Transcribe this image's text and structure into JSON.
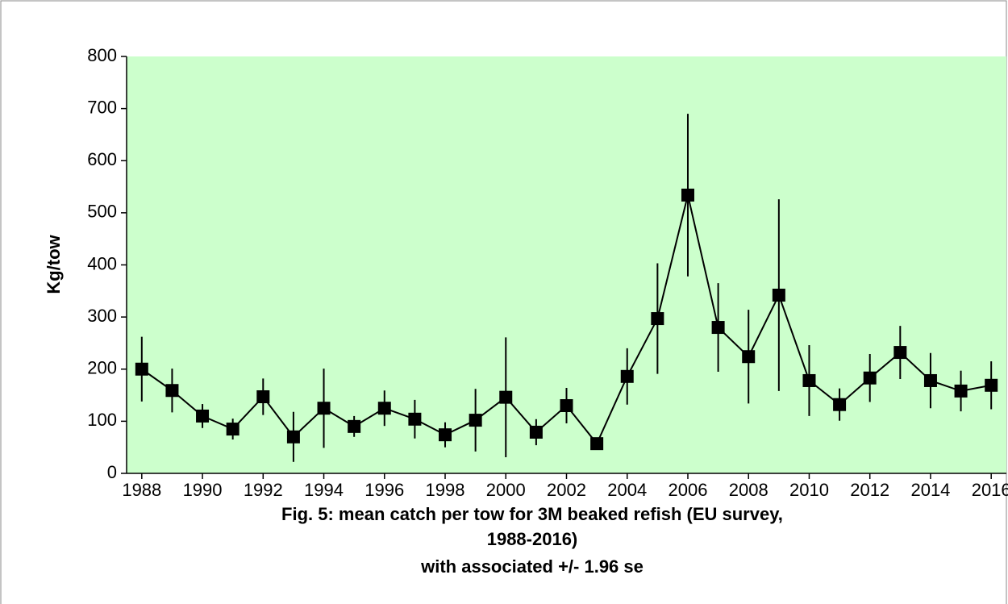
{
  "chart_data": {
    "type": "line",
    "title": [
      "Fig. 5: mean catch per tow for 3M beaked refish (EU survey,",
      "1988-2016)",
      "with associated +/-  1.96 se"
    ],
    "y_label": "Kg/tow",
    "x": [
      1988,
      1989,
      1990,
      1991,
      1992,
      1993,
      1994,
      1995,
      1996,
      1997,
      1998,
      1999,
      2000,
      2001,
      2002,
      2003,
      2004,
      2005,
      2006,
      2007,
      2008,
      2009,
      2010,
      2011,
      2012,
      2013,
      2014,
      2015,
      2016
    ],
    "series": [
      {
        "color": "#000000",
        "values": [
          200,
          159,
          110,
          85,
          147,
          70,
          125,
          90,
          125,
          104,
          74,
          102,
          146,
          79,
          130,
          57,
          186,
          297,
          534,
          280,
          224,
          342,
          178,
          132,
          183,
          232,
          178,
          158,
          169
        ],
        "errors": [
          62,
          42,
          23,
          20,
          35,
          48,
          76,
          20,
          34,
          37,
          24,
          60,
          115,
          25,
          34,
          9,
          54,
          106,
          156,
          85,
          90,
          184,
          68,
          31,
          46,
          51,
          53,
          39,
          46
        ]
      }
    ],
    "xlim": [
      1987.5,
      2016.5
    ],
    "xticks": [
      1988,
      1990,
      1992,
      1994,
      1996,
      1998,
      2000,
      2002,
      2004,
      2006,
      2008,
      2010,
      2012,
      2014,
      2016
    ],
    "ylim": [
      0,
      800
    ],
    "yticks": [
      0,
      100,
      200,
      300,
      400,
      500,
      600,
      700,
      800
    ],
    "plot_background": "#ccffcc"
  }
}
